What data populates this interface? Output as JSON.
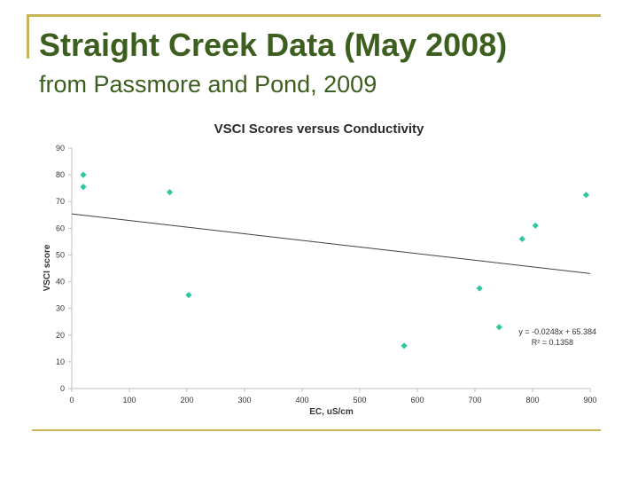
{
  "slide": {
    "title": "Straight Creek Data (May 2008)",
    "subtitle": "from Passmore and Pond, 2009"
  },
  "colors": {
    "title_text": "#3c5e1e",
    "frame": "#c9b458",
    "marker": "#2ec7a0",
    "trendline": "#404040",
    "axis": "#c0c0c0"
  },
  "chart_data": {
    "type": "scatter",
    "title": "VSCI Scores versus Conductivity",
    "xlabel": "EC, uS/cm",
    "ylabel": "VSCI score",
    "xlim": [
      0,
      900
    ],
    "ylim": [
      0,
      90
    ],
    "xticks": [
      0,
      100,
      200,
      300,
      400,
      500,
      600,
      700,
      800,
      900
    ],
    "yticks": [
      0,
      10,
      20,
      30,
      40,
      50,
      60,
      70,
      80,
      90
    ],
    "grid": false,
    "points": [
      {
        "x": 20,
        "y": 80
      },
      {
        "x": 20,
        "y": 75.5
      },
      {
        "x": 170,
        "y": 73.5
      },
      {
        "x": 203,
        "y": 35
      },
      {
        "x": 577,
        "y": 16
      },
      {
        "x": 708,
        "y": 37.5
      },
      {
        "x": 742,
        "y": 23
      },
      {
        "x": 782,
        "y": 56
      },
      {
        "x": 805,
        "y": 61
      },
      {
        "x": 893,
        "y": 72.5
      }
    ],
    "trendline": {
      "slope": -0.0248,
      "intercept": 65.384,
      "x_range": [
        0,
        900
      ],
      "equation_label": "y = -0.0248x + 65.384",
      "r2_label": "R² = 0.1358"
    }
  }
}
